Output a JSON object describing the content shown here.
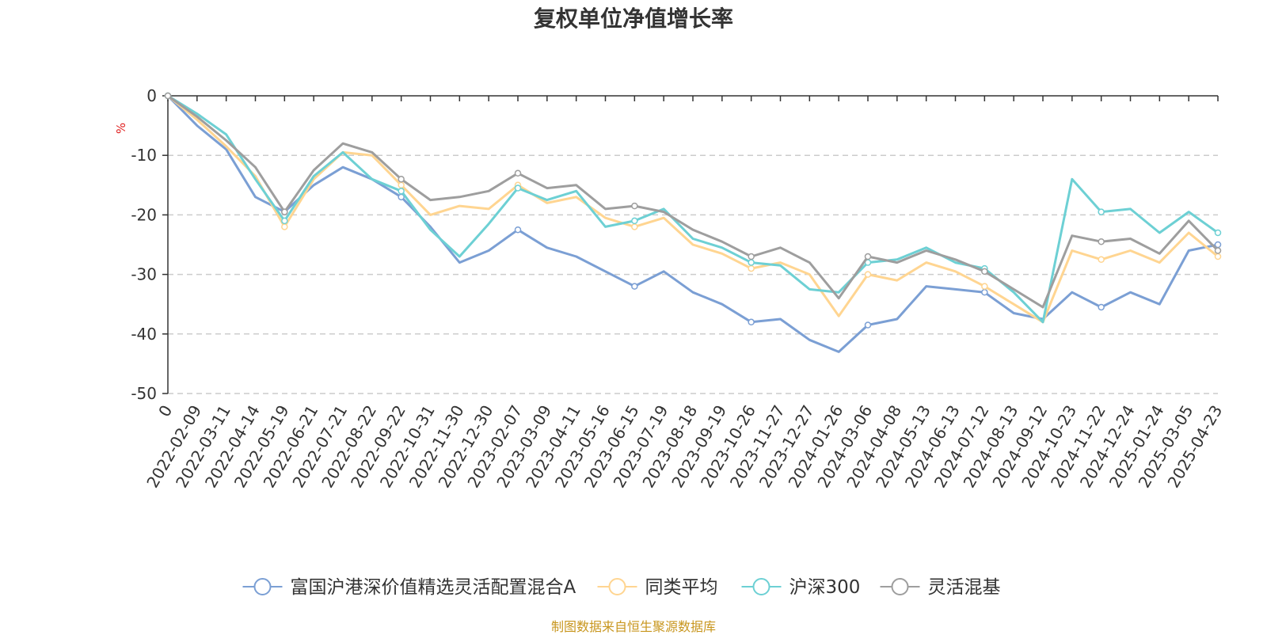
{
  "chart_data": {
    "type": "line",
    "title": "复权单位净值增长率",
    "ylabel": "%",
    "xlabel": "",
    "ylim": [
      -50,
      0
    ],
    "y_ticks": [
      0,
      -10,
      -20,
      -30,
      -40,
      -50
    ],
    "grid": true,
    "legend_position": "bottom",
    "source_note": "制图数据来自恒生聚源数据库",
    "x_tick_labels": [
      "0",
      "2022-02-09",
      "2022-03-11",
      "2022-04-14",
      "2022-05-19",
      "2022-06-21",
      "2022-07-21",
      "2022-08-22",
      "2022-09-22",
      "2022-10-31",
      "2022-11-30",
      "2022-12-30",
      "2023-02-07",
      "2023-03-09",
      "2023-04-11",
      "2023-05-16",
      "2023-06-15",
      "2023-07-19",
      "2023-08-18",
      "2023-09-19",
      "2023-10-26",
      "2023-11-27",
      "2023-12-27",
      "2024-01-26",
      "2024-03-06",
      "2024-04-08",
      "2024-05-13",
      "2024-06-13",
      "2024-07-12",
      "2024-08-13",
      "2024-09-12",
      "2024-10-23",
      "2024-11-22",
      "2024-12-24",
      "2025-01-24",
      "2025-03-05",
      "2025-04-23"
    ],
    "series": [
      {
        "name": "富国沪港深价值精选灵活配置混合A",
        "color": "#7b9fd4",
        "values": [
          0,
          -5,
          -9,
          -17,
          -19.5,
          -15,
          -12,
          -14,
          -17,
          -22,
          -28,
          -26,
          -22.5,
          -25.5,
          -27,
          -29.5,
          -32,
          -29.5,
          -33,
          -35,
          -38,
          -37.5,
          -41,
          -43,
          -38.5,
          -37.5,
          -32,
          -32.5,
          -33,
          -36.5,
          -37.5,
          -33,
          -35.5,
          -33,
          -35,
          -26,
          -25
        ]
      },
      {
        "name": "同类平均",
        "color": "#ffd591",
        "values": [
          0,
          -4,
          -8.5,
          -13.5,
          -22,
          -14,
          -9.5,
          -10,
          -15,
          -20,
          -18.5,
          -19,
          -15,
          -18,
          -17,
          -20.5,
          -22,
          -20.5,
          -25,
          -26.5,
          -29,
          -28,
          -30,
          -37,
          -30,
          -31,
          -28,
          -29.5,
          -32,
          -35,
          -38,
          -26,
          -27.5,
          -26,
          -28,
          -23,
          -27
        ]
      },
      {
        "name": "沪深300",
        "color": "#6dd0d4",
        "values": [
          0,
          -3,
          -6.5,
          -14,
          -21,
          -13.5,
          -9.5,
          -14,
          -16,
          -22.5,
          -27,
          -21.5,
          -15.5,
          -17.5,
          -16,
          -22,
          -21,
          -19,
          -24,
          -25.5,
          -28,
          -28.5,
          -32.5,
          -33,
          -28,
          -27.5,
          -25.5,
          -28,
          -29,
          -33,
          -38,
          -14,
          -19.5,
          -19,
          -23,
          -19.5,
          -23
        ]
      },
      {
        "name": "灵活混基",
        "color": "#9e9e9e",
        "values": [
          0,
          -3.5,
          -7.5,
          -12,
          -19.5,
          -12.5,
          -8,
          -9.5,
          -14,
          -17.5,
          -17,
          -16,
          -13,
          -15.5,
          -15,
          -19,
          -18.5,
          -19.5,
          -22.5,
          -24.5,
          -27,
          -25.5,
          -28,
          -34,
          -27,
          -28,
          -26,
          -27.5,
          -29.5,
          -32.5,
          -35.5,
          -23.5,
          -24.5,
          -24,
          -26.5,
          -21,
          -26
        ]
      }
    ]
  }
}
